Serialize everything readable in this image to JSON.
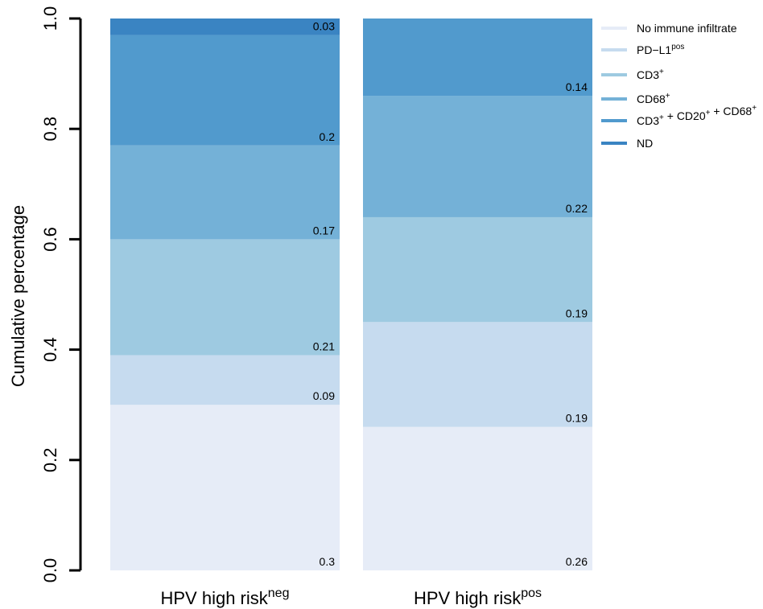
{
  "chart_data": {
    "type": "bar",
    "stacked": true,
    "ylabel": "Cumulative percentage",
    "ylim": [
      0,
      1
    ],
    "yticks": [
      "0.0",
      "0.2",
      "0.4",
      "0.6",
      "0.8",
      "1.0"
    ],
    "categories": [
      {
        "base": "HPV high risk",
        "sup": "neg"
      },
      {
        "base": "HPV high risk",
        "sup": "pos"
      }
    ],
    "series": [
      {
        "name": "No immune infiltrate",
        "sup": "",
        "color": "#e6ecf7",
        "values": [
          0.3,
          0.26
        ],
        "labels": [
          "0.3",
          "0.26"
        ]
      },
      {
        "name": "PD−L1",
        "sup": "pos",
        "color": "#c6dbef",
        "values": [
          0.09,
          0.19
        ],
        "labels": [
          "0.09",
          "0.19"
        ]
      },
      {
        "name": "CD3",
        "sup": "+",
        "color": "#9ecae1",
        "values": [
          0.21,
          0.19
        ],
        "labels": [
          "0.21",
          "0.19"
        ]
      },
      {
        "name": "CD68",
        "sup": "+",
        "color": "#74b1d7",
        "values": [
          0.17,
          0.22
        ],
        "labels": [
          "0.17",
          "0.22"
        ]
      },
      {
        "name": "CD3+ + CD20+ + CD68+",
        "sup": "",
        "color": "#519acd",
        "values": [
          0.2,
          0.14
        ],
        "labels": [
          "0.2",
          "0.14"
        ]
      },
      {
        "name": "ND",
        "sup": "",
        "color": "#3a84c2",
        "values": [
          0.03,
          0.0
        ],
        "labels": [
          "0.03",
          ""
        ]
      }
    ],
    "legend_position": "top-right"
  }
}
